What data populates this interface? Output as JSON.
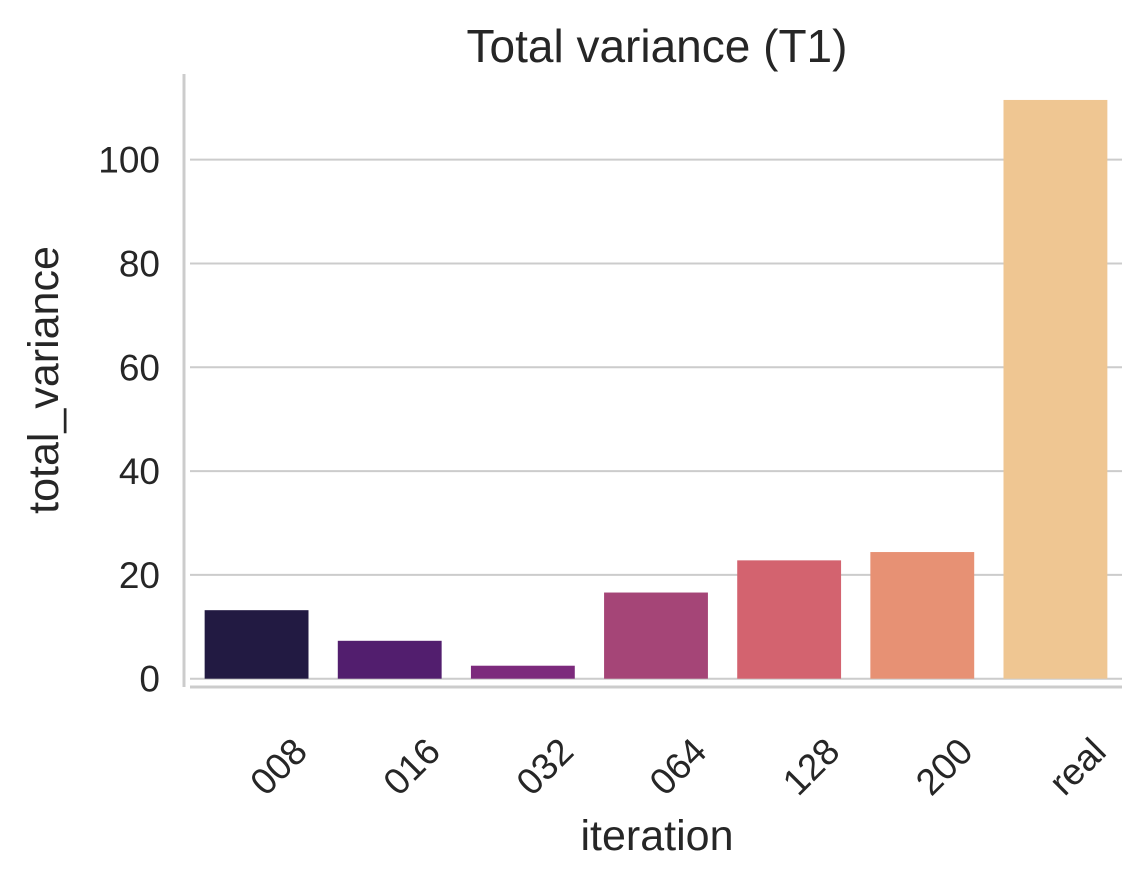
{
  "chart_data": {
    "type": "bar",
    "title": "Total variance (T1)",
    "xlabel": "iteration",
    "ylabel": "total_variance",
    "categories": [
      "008",
      "016",
      "032",
      "064",
      "128",
      "200",
      "real"
    ],
    "values": [
      13.2,
      7.3,
      2.5,
      16.6,
      22.8,
      24.4,
      111.5
    ],
    "colors": [
      "#221a42",
      "#521e6e",
      "#7c2a7c",
      "#a54577",
      "#d3636f",
      "#e79174",
      "#efc692"
    ],
    "ylim": [
      -1.6,
      116.5
    ],
    "yticks": [
      0,
      20,
      40,
      60,
      80,
      100
    ],
    "grid": true,
    "grid_axis": "y",
    "legend": "none",
    "xtick_rotation": -45,
    "style": {
      "grid_color": "#cccccc",
      "spine_color": "#cccccc",
      "text_color": "#262626"
    }
  }
}
